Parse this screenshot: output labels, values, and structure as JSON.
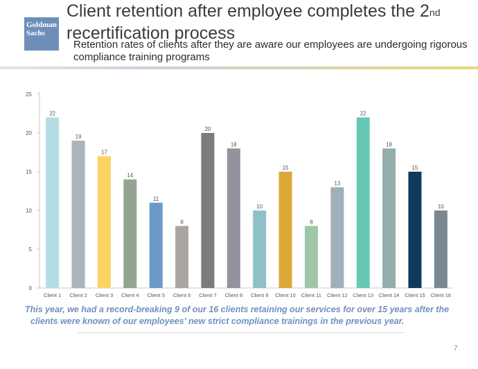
{
  "logo": {
    "line1": "Goldman",
    "line2": "Sachs"
  },
  "header": {
    "title_main": "Client retention after employee completes the 2",
    "title_sup": "nd",
    "title_rest": " recertification process",
    "subtitle": "Retention rates of clients after they are aware our employees are undergoing rigorous compliance training programs"
  },
  "chart_data": {
    "type": "bar",
    "categories": [
      "Client 1",
      "Client 2",
      "Client 3",
      "Client 4",
      "Client 5",
      "Client 6",
      "Client 7",
      "Client 8",
      "Client 9",
      "Client 10",
      "Client 11",
      "Client 12",
      "Client 13",
      "Client 14",
      "Client 15",
      "Client 16"
    ],
    "values": [
      22,
      19,
      17,
      14,
      11,
      8,
      20,
      18,
      10,
      15,
      8,
      13,
      22,
      18,
      15,
      10
    ],
    "colors": [
      "#b3dde4",
      "#aab5b9",
      "#fdd263",
      "#93a590",
      "#6d99c9",
      "#aaa59f",
      "#7c7c7c",
      "#94929c",
      "#8ec1c6",
      "#dba838",
      "#9fc6a9",
      "#9fb0ba",
      "#67c8b6",
      "#95adac",
      "#0f3a5e",
      "#7b8791"
    ],
    "yticks": [
      0,
      5,
      10,
      15,
      20,
      25
    ],
    "ylim": [
      0,
      25
    ],
    "grid": false,
    "data_labels": true
  },
  "footer": {
    "note_line1": "This year, we had a record-breaking 9 of our 16 clients retaining our services for over 15 years after the",
    "note_line2": "clients were known of our employees' new strict compliance trainings in the previous year.",
    "page_number": "7"
  }
}
